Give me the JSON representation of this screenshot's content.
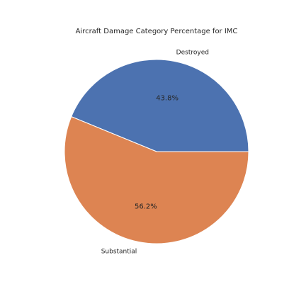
{
  "chart_data": {
    "type": "pie",
    "title": "Aircraft Damage Category Percentage for IMC",
    "slices": [
      {
        "label": "Destroyed",
        "value": 43.8,
        "pct_label": "43.8%",
        "color": "#4c72b0"
      },
      {
        "label": "Substantial",
        "value": 56.2,
        "pct_label": "56.2%",
        "color": "#dd8452"
      }
    ],
    "start_angle": 0,
    "direction": "counterclockwise",
    "edge_color": "#ffffff"
  }
}
